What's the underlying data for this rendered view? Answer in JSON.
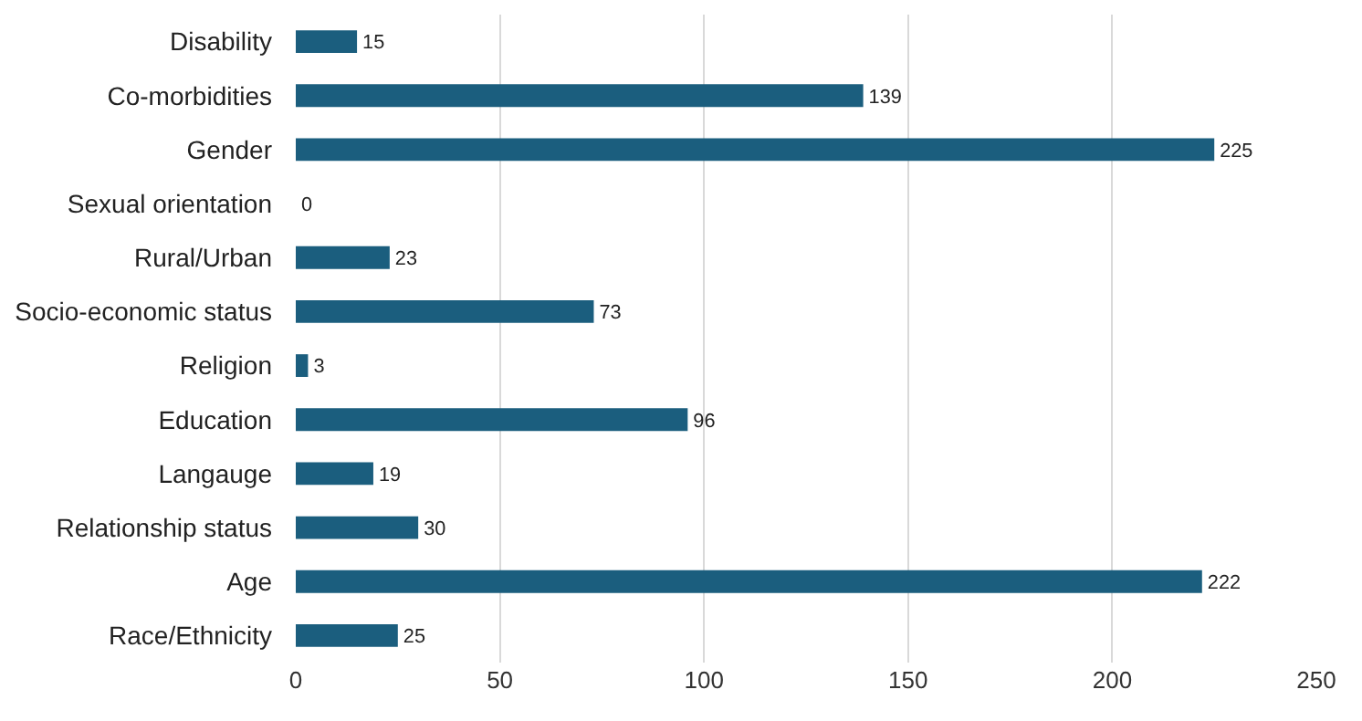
{
  "chart_data": {
    "type": "bar",
    "orientation": "horizontal",
    "categories": [
      "Disability",
      "Co-morbidities",
      "Gender",
      "Sexual orientation",
      "Rural/Urban",
      "Socio-economic status",
      "Religion",
      "Education",
      "Langauge",
      "Relationship status",
      "Age",
      "Race/Ethnicity"
    ],
    "values": [
      15,
      139,
      225,
      0,
      23,
      73,
      3,
      96,
      19,
      30,
      222,
      25
    ],
    "color": "#1b5e7e",
    "xlim": [
      0,
      250
    ],
    "xticks": [
      0,
      50,
      100,
      150,
      200,
      250
    ],
    "grid": "x",
    "data_labels": true,
    "legend": false
  }
}
